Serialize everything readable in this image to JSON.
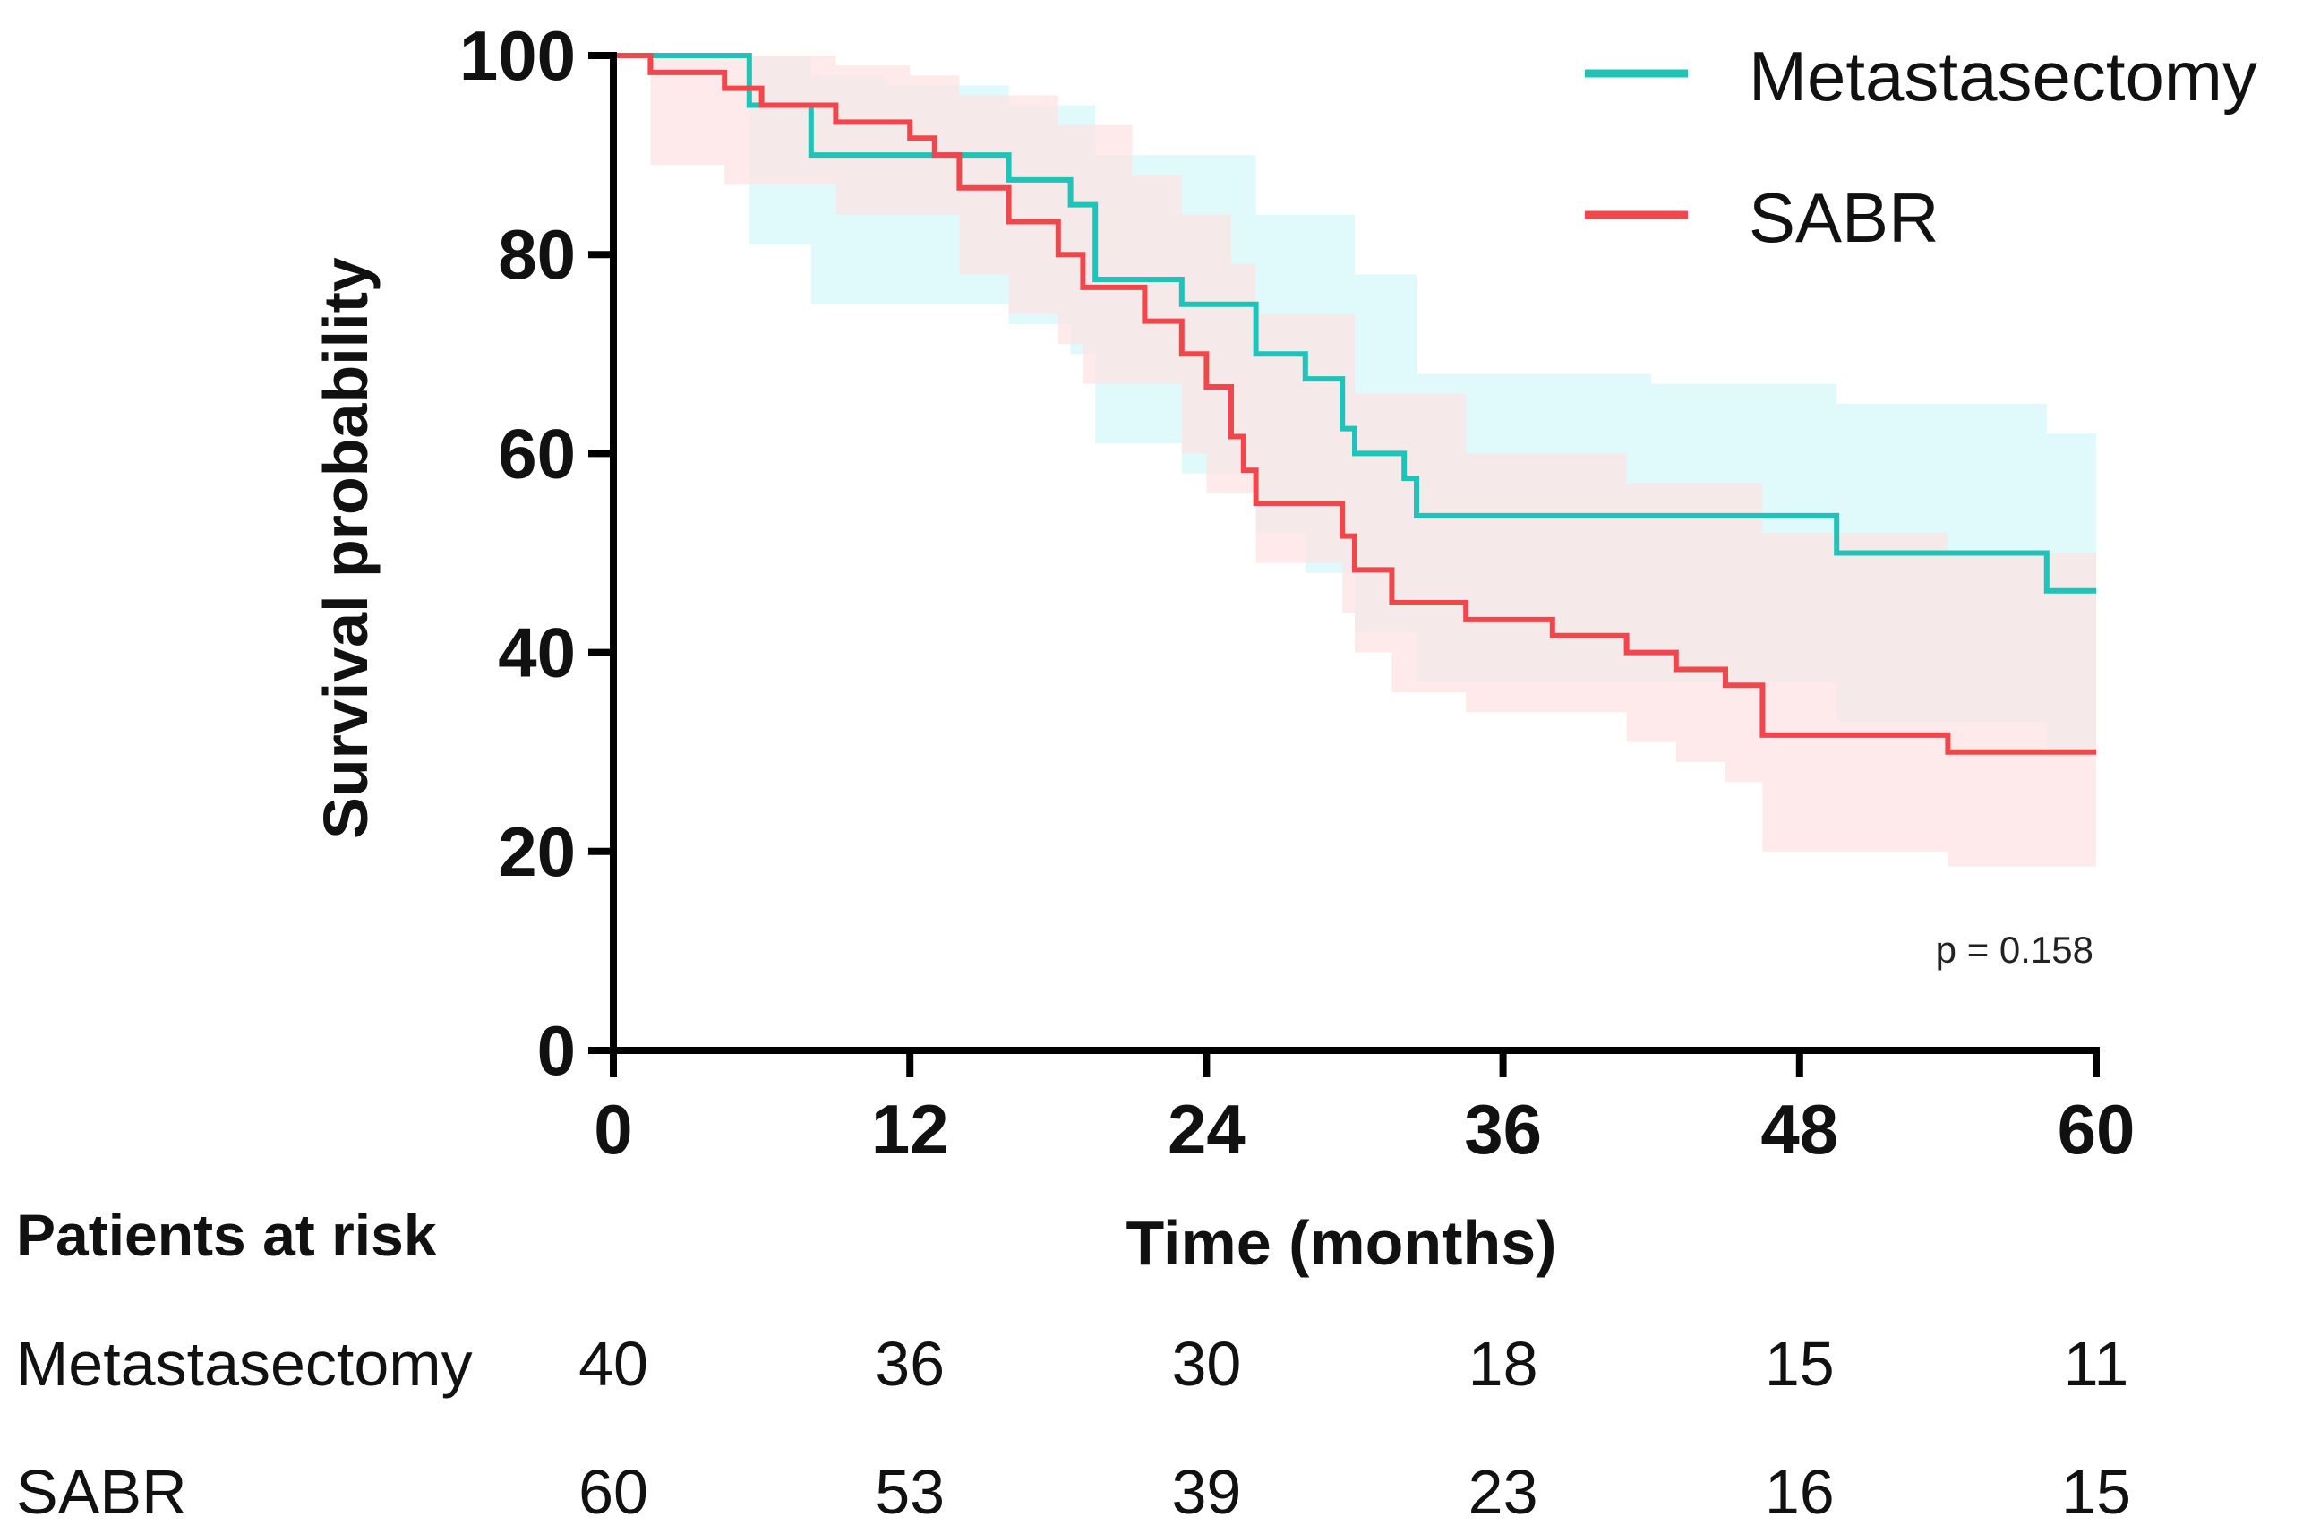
{
  "chart_data": {
    "type": "line",
    "subtype": "kaplan-meier",
    "xlabel": "Time (months)",
    "ylabel": "Survival probability",
    "xlim": [
      0,
      60
    ],
    "ylim": [
      0,
      100
    ],
    "xticks": [
      0,
      12,
      24,
      36,
      48,
      60
    ],
    "yticks": [
      0,
      20,
      40,
      60,
      80,
      100
    ],
    "legend_position": "top-right",
    "annotation": "p = 0.158",
    "series": [
      {
        "name": "Metastasectomy",
        "color": "#1fc3b8",
        "ci_color": "#d6f7f9",
        "steps": [
          [
            0,
            100
          ],
          [
            5.5,
            95
          ],
          [
            8,
            90
          ],
          [
            16,
            87.5
          ],
          [
            18.5,
            85
          ],
          [
            19.5,
            77.5
          ],
          [
            23,
            75
          ],
          [
            26,
            70
          ],
          [
            28,
            67.5
          ],
          [
            29.5,
            62.5
          ],
          [
            30,
            60
          ],
          [
            32,
            57.5
          ],
          [
            32.5,
            53.75
          ],
          [
            49.5,
            50
          ],
          [
            58,
            46.2
          ],
          [
            60,
            46.2
          ]
        ],
        "ci_upper": [
          [
            0,
            100
          ],
          [
            5.5,
            100
          ],
          [
            8,
            98
          ],
          [
            11,
            97
          ],
          [
            16,
            95
          ],
          [
            19.5,
            90
          ],
          [
            26,
            84
          ],
          [
            30,
            78
          ],
          [
            32.5,
            68
          ],
          [
            42,
            67
          ],
          [
            49.5,
            65
          ],
          [
            58,
            62
          ],
          [
            60,
            62
          ]
        ],
        "ci_lower": [
          [
            0,
            100
          ],
          [
            5.5,
            81
          ],
          [
            8,
            75
          ],
          [
            16,
            73
          ],
          [
            18.5,
            70
          ],
          [
            19.5,
            61
          ],
          [
            23,
            58
          ],
          [
            26,
            52
          ],
          [
            28,
            48
          ],
          [
            30,
            42
          ],
          [
            32.5,
            37
          ],
          [
            49.5,
            33
          ],
          [
            58,
            30
          ],
          [
            60,
            30
          ]
        ]
      },
      {
        "name": "SABR",
        "color": "#f0474c",
        "ci_color": "#fde3e3",
        "steps": [
          [
            0,
            100
          ],
          [
            1.5,
            98.3
          ],
          [
            4.5,
            96.7
          ],
          [
            6,
            95
          ],
          [
            9,
            93.3
          ],
          [
            12,
            91.7
          ],
          [
            13,
            90
          ],
          [
            14,
            86.7
          ],
          [
            16,
            83.3
          ],
          [
            18,
            80
          ],
          [
            19,
            76.7
          ],
          [
            21.5,
            73.3
          ],
          [
            23,
            70
          ],
          [
            24,
            66.7
          ],
          [
            25,
            61.7
          ],
          [
            25.5,
            58.3
          ],
          [
            26,
            55
          ],
          [
            29.5,
            51.7
          ],
          [
            30,
            48.3
          ],
          [
            31.5,
            45
          ],
          [
            34.5,
            43.3
          ],
          [
            38,
            41.7
          ],
          [
            41,
            40
          ],
          [
            43,
            38.3
          ],
          [
            45,
            36.7
          ],
          [
            46.5,
            31.7
          ],
          [
            54,
            30
          ],
          [
            60,
            30
          ]
        ],
        "ci_upper": [
          [
            0,
            100
          ],
          [
            3,
            100
          ],
          [
            9,
            99
          ],
          [
            12,
            98
          ],
          [
            14,
            96
          ],
          [
            18,
            93
          ],
          [
            21,
            88
          ],
          [
            23,
            84
          ],
          [
            25,
            79
          ],
          [
            26,
            74
          ],
          [
            30,
            66
          ],
          [
            34.5,
            60
          ],
          [
            41,
            57
          ],
          [
            46.5,
            52
          ],
          [
            54,
            50
          ],
          [
            60,
            50
          ]
        ],
        "ci_lower": [
          [
            0,
            100
          ],
          [
            1.5,
            89
          ],
          [
            4.5,
            87
          ],
          [
            9,
            84
          ],
          [
            14,
            78
          ],
          [
            16,
            74
          ],
          [
            18,
            71
          ],
          [
            19,
            67
          ],
          [
            23,
            60
          ],
          [
            24,
            56
          ],
          [
            26,
            49
          ],
          [
            29.5,
            44
          ],
          [
            30,
            40
          ],
          [
            31.5,
            36
          ],
          [
            34.5,
            34
          ],
          [
            41,
            31
          ],
          [
            43,
            29
          ],
          [
            45,
            27
          ],
          [
            46.5,
            20
          ],
          [
            54,
            18.5
          ],
          [
            60,
            18.5
          ]
        ]
      }
    ],
    "risk_table": {
      "title": "Patients at risk",
      "times": [
        0,
        12,
        24,
        36,
        48,
        60
      ],
      "rows": [
        {
          "name": "Metastasectomy",
          "values": [
            40,
            36,
            30,
            18,
            15,
            11
          ]
        },
        {
          "name": "SABR",
          "values": [
            60,
            53,
            39,
            23,
            16,
            15
          ]
        }
      ]
    }
  }
}
